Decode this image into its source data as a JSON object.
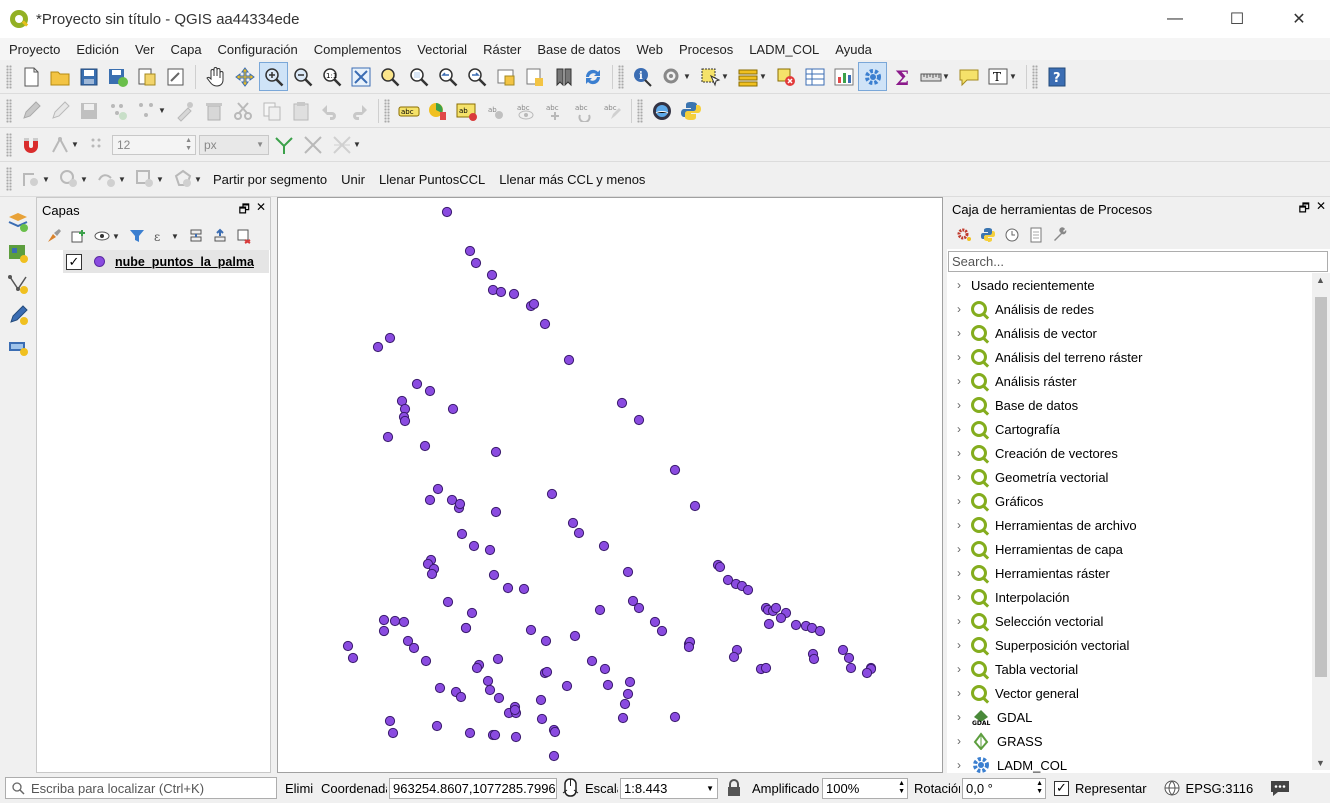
{
  "window": {
    "title": "*Proyecto sin título - QGIS aa44334ede",
    "minimize": "—",
    "maximize": "☐",
    "close": "✕"
  },
  "menu": [
    "Proyecto",
    "Edición",
    "Ver",
    "Capa",
    "Configuración",
    "Complementos",
    "Vectorial",
    "Ráster",
    "Base de datos",
    "Web",
    "Procesos",
    "LADM_COL",
    "Ayuda"
  ],
  "snapping": {
    "tolerance": "12",
    "unit": "px"
  },
  "ladm_toolbar": {
    "partir": "Partir por segmento",
    "unir": "Unir",
    "llenar": "Llenar PuntosCCL",
    "llenar_mas": "Llenar más CCL y menos"
  },
  "layers_panel": {
    "title": "Capas",
    "layer_name": "nube_puntos_la_palma",
    "point_color": "#8a4be0"
  },
  "processing_panel": {
    "title": "Caja de herramientas de Procesos",
    "search_placeholder": "Search...",
    "recent": "Usado recientemente",
    "groups": [
      "Análisis de redes",
      "Análisis de vector",
      "Análisis del terreno ráster",
      "Análisis ráster",
      "Base de datos",
      "Cartografía",
      "Creación de vectores",
      "Geometría vectorial",
      "Gráficos",
      "Herramientas de archivo",
      "Herramientas de capa",
      "Herramientas ráster",
      "Interpolación",
      "Selección vectorial",
      "Superposición vectorial",
      "Tabla vectorial",
      "Vector general"
    ],
    "providers": [
      "GDAL",
      "GRASS",
      "LADM_COL"
    ]
  },
  "statusbar": {
    "locator_placeholder": "Escriba para localizar (Ctrl+K)",
    "messages_label": "Elimi",
    "coord_label": "Coordenada",
    "coord_value": "963254.8607,1077285.7996",
    "scale_label": "Escala",
    "scale_value": "1:8.443",
    "magnifier_label": "Amplificador",
    "magnifier_value": "100%",
    "rotation_label": "Rotación",
    "rotation_value": "0,0 °",
    "render_label": "Representar",
    "crs": "EPSG:3116"
  }
}
